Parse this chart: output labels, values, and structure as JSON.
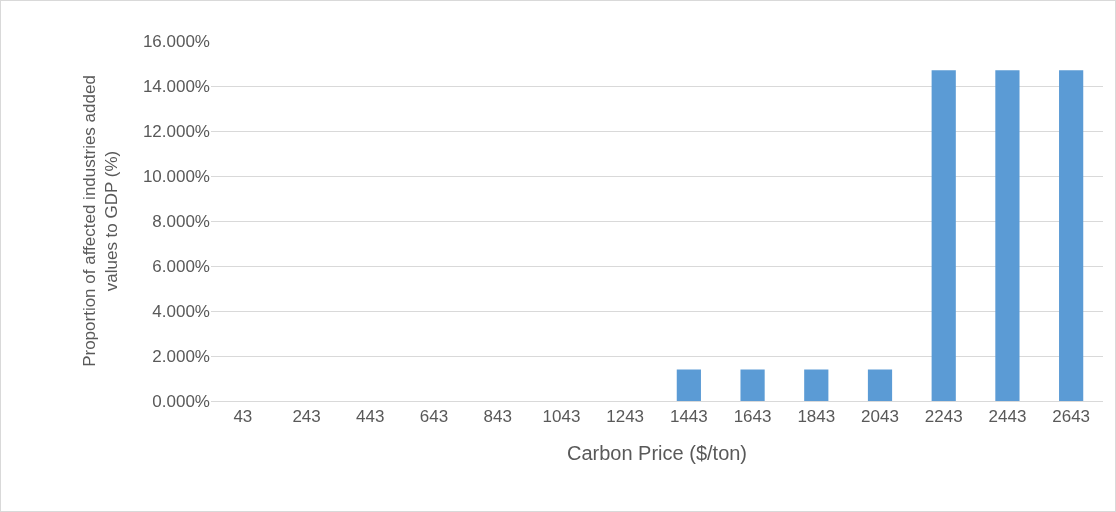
{
  "chart_data": {
    "type": "bar",
    "xlabel": "Carbon Price ($/ton)",
    "ylabel": "Proportion of affected industries added values to GDP (%)",
    "categories": [
      "43",
      "243",
      "443",
      "643",
      "843",
      "1043",
      "1243",
      "1443",
      "1643",
      "1843",
      "2043",
      "2243",
      "2443",
      "2643"
    ],
    "values": [
      0,
      0,
      0,
      0,
      0,
      0,
      0,
      1.4,
      1.4,
      1.4,
      1.4,
      14.7,
      14.7,
      14.7
    ],
    "color": "#5b9bd5",
    "ylim": [
      0,
      16
    ],
    "yticks": [
      {
        "value": 0,
        "label": "0.000%"
      },
      {
        "value": 2,
        "label": "2.000%"
      },
      {
        "value": 4,
        "label": "4.000%"
      },
      {
        "value": 6,
        "label": "6.000%"
      },
      {
        "value": 8,
        "label": "8.000%"
      },
      {
        "value": 10,
        "label": "10.000%"
      },
      {
        "value": 12,
        "label": "12.000%"
      },
      {
        "value": 14,
        "label": "14.000%"
      },
      {
        "value": 16,
        "label": "16.000%"
      }
    ],
    "grid": "y",
    "legend": false
  }
}
